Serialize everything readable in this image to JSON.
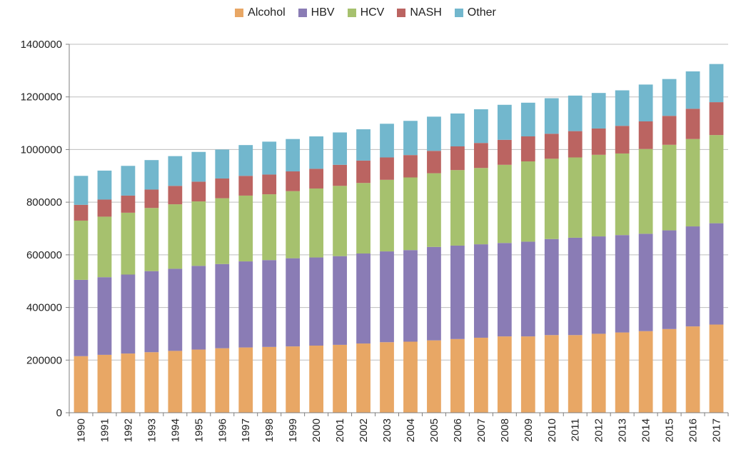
{
  "chart_data": {
    "type": "bar",
    "stacked": true,
    "title": "",
    "xlabel": "",
    "ylabel": "",
    "ylim": [
      0,
      1400000
    ],
    "yticks": [
      0,
      200000,
      400000,
      600000,
      800000,
      1000000,
      1200000,
      1400000
    ],
    "yticks_labels": [
      "0",
      "200000",
      "400000",
      "600000",
      "800000",
      "1000000",
      "1200000",
      "1400000"
    ],
    "grid": true,
    "legend_position": "top-center",
    "categories": [
      "1990",
      "1991",
      "1992",
      "1993",
      "1994",
      "1995",
      "1996",
      "1997",
      "1998",
      "1999",
      "2000",
      "2001",
      "2002",
      "2003",
      "2004",
      "2005",
      "2006",
      "2007",
      "2008",
      "2009",
      "2010",
      "2011",
      "2012",
      "2013",
      "2014",
      "2015",
      "2016",
      "2017"
    ],
    "series": [
      {
        "name": "Alcohol",
        "color": "#e8a765",
        "values": [
          215000,
          220000,
          225000,
          230000,
          235000,
          240000,
          245000,
          248000,
          250000,
          252000,
          255000,
          258000,
          263000,
          268000,
          270000,
          275000,
          280000,
          285000,
          290000,
          290000,
          295000,
          295000,
          300000,
          305000,
          310000,
          318000,
          328000,
          335000
        ]
      },
      {
        "name": "HBV",
        "color": "#8a7cb5",
        "values": [
          290000,
          295000,
          300000,
          308000,
          312000,
          318000,
          320000,
          327000,
          330000,
          335000,
          335000,
          337000,
          342000,
          345000,
          348000,
          355000,
          355000,
          355000,
          355000,
          360000,
          365000,
          370000,
          370000,
          370000,
          370000,
          375000,
          380000,
          385000
        ]
      },
      {
        "name": "HCV",
        "color": "#a6c16e",
        "values": [
          225000,
          230000,
          235000,
          240000,
          245000,
          245000,
          250000,
          250000,
          250000,
          255000,
          262000,
          267000,
          268000,
          272000,
          276000,
          280000,
          287000,
          290000,
          297000,
          305000,
          305000,
          305000,
          310000,
          310000,
          322000,
          325000,
          332000,
          335000
        ]
      },
      {
        "name": "NASH",
        "color": "#bb6461",
        "values": [
          60000,
          65000,
          65000,
          70000,
          70000,
          75000,
          75000,
          75000,
          75000,
          75000,
          75000,
          80000,
          85000,
          85000,
          85000,
          85000,
          90000,
          95000,
          95000,
          95000,
          95000,
          100000,
          100000,
          105000,
          105000,
          110000,
          115000,
          125000
        ]
      },
      {
        "name": "Other",
        "color": "#72b7cd",
        "values": [
          110000,
          110000,
          113000,
          112000,
          113000,
          113000,
          110000,
          117000,
          125000,
          123000,
          123000,
          123000,
          119000,
          128000,
          130000,
          130000,
          125000,
          128000,
          133000,
          128000,
          135000,
          135000,
          135000,
          135000,
          140000,
          140000,
          142000,
          145000
        ]
      }
    ]
  }
}
